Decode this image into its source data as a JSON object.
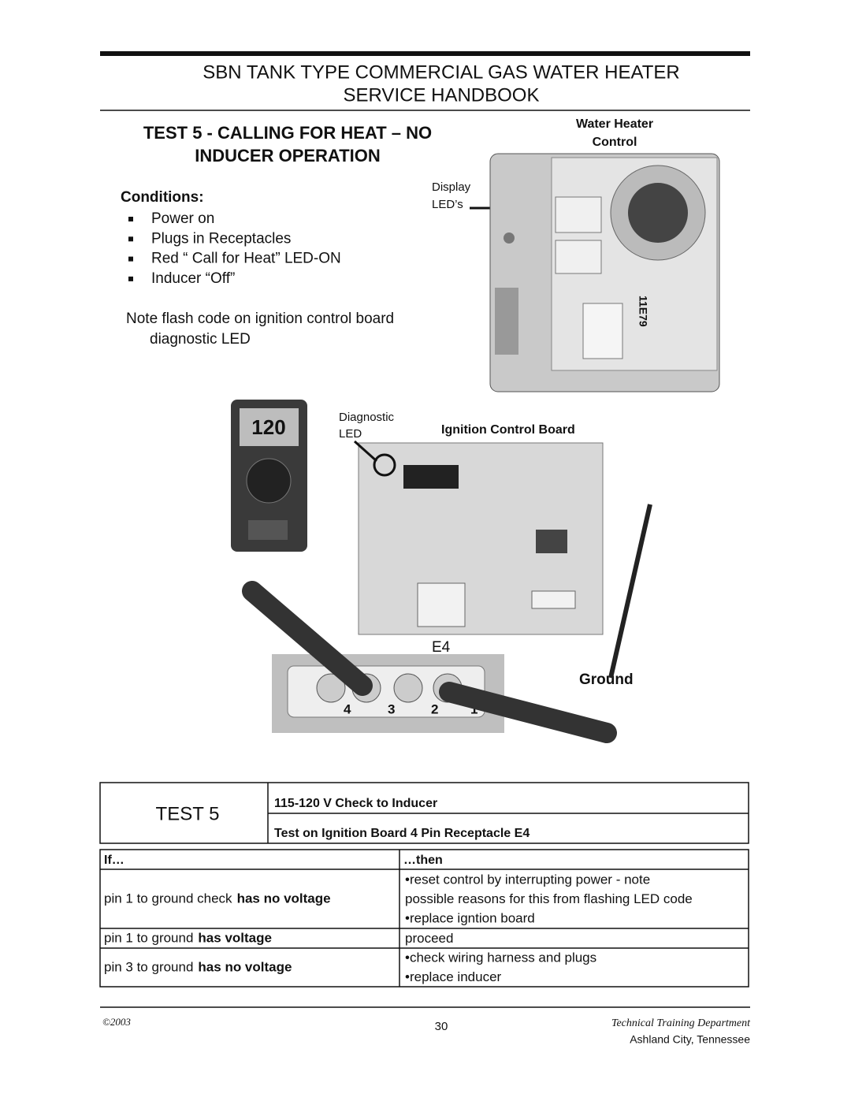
{
  "header": {
    "title_line1": "SBN TANK TYPE COMMERCIAL GAS WATER HEATER",
    "title_line2": "SERVICE HANDBOOK"
  },
  "section": {
    "title_line1": "TEST 5 - CALLING FOR HEAT – NO",
    "title_line2": "INDUCER OPERATION",
    "conditions_label": "Conditions:",
    "conditions": [
      "Power on",
      "Plugs in Receptacles",
      "Red “ Call for Heat”  LED-ON",
      "Inducer “Off”"
    ],
    "note_line1": "Note flash code on ignition control board",
    "note_line2": "diagnostic LED"
  },
  "figures": {
    "water_heater_label": [
      "Water Heater",
      "Control"
    ],
    "display_label": [
      "Display",
      "LED’s"
    ],
    "control_model": "11E79",
    "meter_reading": "120",
    "diagnostic_label": [
      "Diagnostic",
      "LED"
    ],
    "ignition_label": "Ignition Control Board",
    "receptacle_label": "E4",
    "pins": [
      "4",
      "3",
      "2",
      "1"
    ],
    "ground_label": "Ground"
  },
  "test_box": {
    "name": "TEST 5",
    "rows": [
      "115-120 V Check to Inducer",
      "Test on Ignition Board 4 Pin Receptacle E4"
    ]
  },
  "table": {
    "header": [
      "If…",
      "…then"
    ],
    "rows": [
      {
        "if": {
          "text": "pin 1 to ground check",
          "bold": "has no voltage"
        },
        "then": [
          "•reset control by interrupting power - note",
          "possible reasons for this from flashing LED code",
          "•replace igntion board"
        ]
      },
      {
        "if": {
          "text": "pin 1 to ground",
          "bold": "has voltage"
        },
        "then": [
          "proceed"
        ]
      },
      {
        "if": {
          "text": "pin 3 to ground",
          "bold": "has no voltage"
        },
        "then": [
          "•check wiring harness and plugs",
          "•replace inducer"
        ]
      }
    ]
  },
  "footer": {
    "copyright": "©2003",
    "page": "30",
    "department": "Technical Training Department",
    "location": "Ashland City, Tennessee"
  }
}
